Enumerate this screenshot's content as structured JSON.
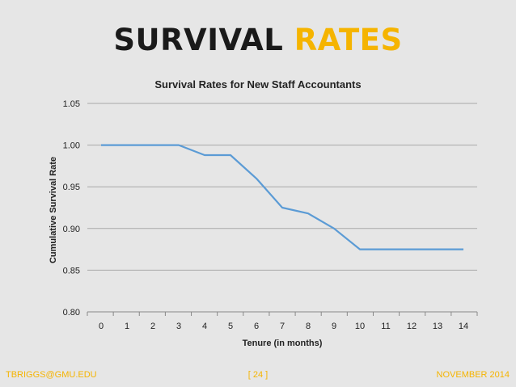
{
  "slide": {
    "title_main": "SURVIVAL",
    "title_accent": "RATES",
    "footer_left": "TBRIGGS@GMU.EDU",
    "footer_center": "[ 24 ]",
    "footer_right": "NOVEMBER 2014",
    "accent_color": "#f5b400",
    "background_color": "#e6e6e6"
  },
  "chart_data": {
    "type": "line",
    "title": "Survival Rates for New Staff Accountants",
    "xlabel": "Tenure (in months)",
    "ylabel": "Cumulative Survival Rate",
    "x": [
      0,
      1,
      2,
      3,
      4,
      5,
      6,
      7,
      8,
      9,
      10,
      11,
      12,
      13,
      14
    ],
    "series": [
      {
        "values": [
          1.0,
          1.0,
          1.0,
          1.0,
          0.988,
          0.988,
          0.96,
          0.925,
          0.918,
          0.9,
          0.875,
          0.875,
          0.875,
          0.875,
          0.875
        ],
        "color": "#5b9bd5"
      }
    ],
    "xlim": [
      0,
      14
    ],
    "ylim": [
      0.8,
      1.05
    ],
    "yticks": [
      "0.80",
      "0.85",
      "0.90",
      "0.95",
      "1.00",
      "1.05"
    ],
    "xticks": [
      "0",
      "1",
      "2",
      "3",
      "4",
      "5",
      "6",
      "7",
      "8",
      "9",
      "10",
      "11",
      "12",
      "13",
      "14"
    ],
    "grid": true,
    "legend": "none"
  }
}
